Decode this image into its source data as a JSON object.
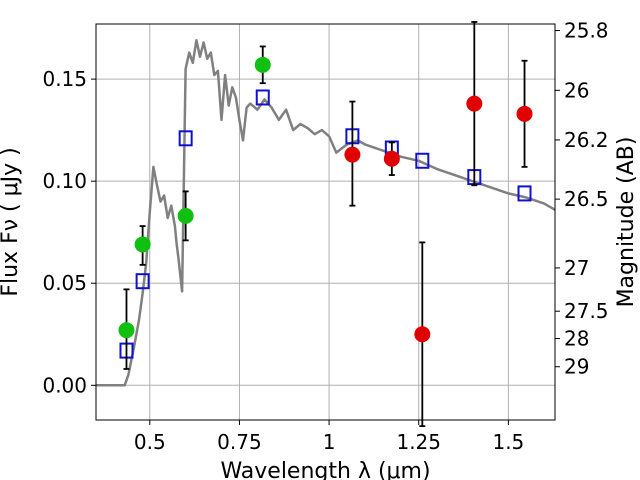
{
  "colors": {
    "model": "#808080",
    "photometry_blue": "#1010d0",
    "photometry_green": "#10c010",
    "photometry_red": "#e00000",
    "errorbar": "#000000",
    "grid": "#b0b0b0"
  },
  "chart_data": {
    "type": "scatter",
    "xlabel": "Wavelength  λ (μm)",
    "ylabel": "Flux  Fν  ( μJy )",
    "ylabel_right": "Magnitude (AB)",
    "xlim": [
      0.35,
      1.63
    ],
    "ylim": [
      -0.017,
      0.177
    ],
    "x_ticks": [
      0.5,
      0.75,
      1.0,
      1.25,
      1.5
    ],
    "x_tick_labels": [
      "0.5",
      "0.75",
      "1",
      "1.25",
      "1.5"
    ],
    "y_ticks": [
      0.0,
      0.05,
      0.1,
      0.15
    ],
    "y_tick_labels": [
      "0.00",
      "0.05",
      "0.10",
      "0.15"
    ],
    "right_axis_ticks": [
      {
        "label": "25.8",
        "flux": 0.1738
      },
      {
        "label": "26",
        "flux": 0.1445
      },
      {
        "label": "26.2",
        "flux": 0.1202
      },
      {
        "label": "26.5",
        "flux": 0.0912
      },
      {
        "label": "27",
        "flux": 0.0575
      },
      {
        "label": "27.5",
        "flux": 0.0363
      },
      {
        "label": "28",
        "flux": 0.0229
      },
      {
        "label": "29",
        "flux": 0.0091
      }
    ],
    "grid": true,
    "series": [
      {
        "kind": "line",
        "color": "#808080",
        "x": [
          0.35,
          0.43,
          0.44,
          0.455,
          0.47,
          0.48,
          0.49,
          0.5,
          0.51,
          0.52,
          0.53,
          0.54,
          0.55,
          0.56,
          0.57,
          0.575,
          0.58,
          0.585,
          0.59,
          0.6,
          0.61,
          0.62,
          0.63,
          0.64,
          0.65,
          0.66,
          0.67,
          0.68,
          0.69,
          0.7,
          0.71,
          0.72,
          0.73,
          0.74,
          0.75,
          0.76,
          0.77,
          0.78,
          0.8,
          0.82,
          0.84,
          0.86,
          0.88,
          0.9,
          0.92,
          0.94,
          0.96,
          0.98,
          1.0,
          1.02,
          1.05,
          1.08,
          1.1,
          1.15,
          1.2,
          1.25,
          1.3,
          1.35,
          1.4,
          1.45,
          1.5,
          1.55,
          1.6,
          1.63
        ],
        "y": [
          0.0,
          0.0,
          0.005,
          0.018,
          0.032,
          0.045,
          0.06,
          0.085,
          0.107,
          0.098,
          0.09,
          0.093,
          0.082,
          0.088,
          0.078,
          0.069,
          0.062,
          0.054,
          0.046,
          0.155,
          0.163,
          0.158,
          0.169,
          0.161,
          0.168,
          0.16,
          0.163,
          0.152,
          0.154,
          0.13,
          0.152,
          0.137,
          0.146,
          0.141,
          0.13,
          0.12,
          0.136,
          0.138,
          0.135,
          0.14,
          0.136,
          0.13,
          0.135,
          0.125,
          0.128,
          0.126,
          0.123,
          0.125,
          0.122,
          0.114,
          0.118,
          0.12,
          0.118,
          0.115,
          0.112,
          0.11,
          0.106,
          0.103,
          0.1,
          0.097,
          0.094,
          0.092,
          0.089,
          0.086
        ]
      },
      {
        "kind": "points",
        "marker": "open-square",
        "color": "#1010d0",
        "x": [
          0.435,
          0.48,
          0.6,
          0.815,
          1.065,
          1.175,
          1.26,
          1.405,
          1.545
        ],
        "y": [
          0.017,
          0.051,
          0.121,
          0.141,
          0.122,
          0.116,
          0.11,
          0.102,
          0.094
        ]
      },
      {
        "kind": "points",
        "marker": "filled-circle",
        "color": "#10c010",
        "x": [
          0.435,
          0.48,
          0.6,
          0.815
        ],
        "y": [
          0.027,
          0.069,
          0.083,
          0.157
        ],
        "yerr_low": [
          0.019,
          0.01,
          0.012,
          0.009
        ],
        "yerr_high": [
          0.02,
          0.009,
          0.012,
          0.009
        ]
      },
      {
        "kind": "points",
        "marker": "filled-circle",
        "color": "#e00000",
        "x": [
          1.065,
          1.175,
          1.26,
          1.405,
          1.545
        ],
        "y": [
          0.113,
          0.111,
          0.025,
          0.138,
          0.133
        ],
        "yerr_low": [
          0.025,
          0.008,
          0.045,
          0.04,
          0.026
        ],
        "yerr_high": [
          0.026,
          0.008,
          0.045,
          0.04,
          0.026
        ]
      }
    ]
  }
}
